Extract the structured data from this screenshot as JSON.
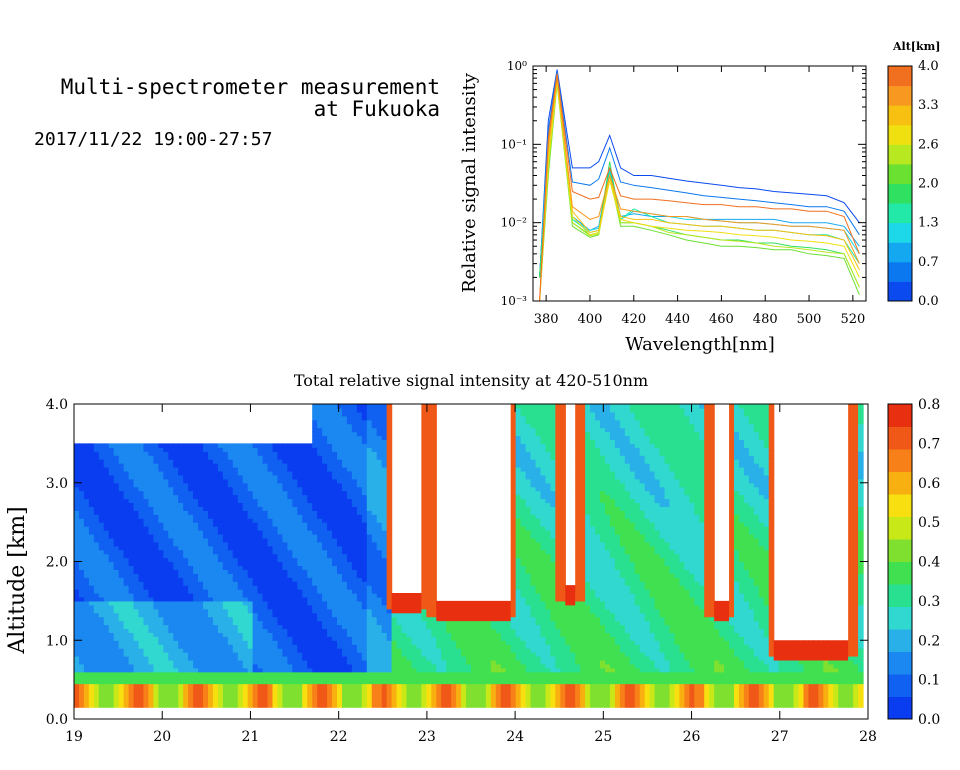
{
  "header": {
    "title_line1": "Multi-spectrometer measurement",
    "title_line2": "at Fukuoka",
    "datetime": "2017/11/22 19:00-27:57"
  },
  "chart_data": [
    {
      "type": "line",
      "xlabel": "Wavelength[nm]",
      "ylabel": "Relative signal intensity",
      "x_ticks": [
        "380",
        "400",
        "420",
        "440",
        "460",
        "480",
        "500",
        "520"
      ],
      "y_ticks": [
        "10⁻³",
        "10⁻²",
        "10⁻¹",
        "10⁰"
      ],
      "xlim": [
        374,
        526
      ],
      "ylim": [
        0.001,
        1
      ],
      "yscale": "log",
      "x": [
        377,
        381,
        385,
        392,
        400,
        404,
        409,
        414,
        420,
        428,
        436,
        444,
        452,
        460,
        468,
        476,
        484,
        492,
        500,
        508,
        516,
        523
      ],
      "colorbar": {
        "title": "Alt[km]",
        "ticks": [
          "0.0",
          "0.7",
          "1.3",
          "2.0",
          "2.6",
          "3.3",
          "4.0"
        ],
        "colors": [
          "#0a4aef",
          "#0c78f0",
          "#14a8f0",
          "#1cd8e8",
          "#22e8a8",
          "#30e060",
          "#6ae030",
          "#b8e820",
          "#f0e010",
          "#f8c010",
          "#f89820",
          "#f07020"
        ]
      },
      "series": [
        {
          "color": "#0a4aef",
          "values": [
            0.002,
            0.2,
            0.9,
            0.05,
            0.05,
            0.06,
            0.13,
            0.05,
            0.04,
            0.04,
            0.037,
            0.034,
            0.032,
            0.03,
            0.028,
            0.027,
            0.025,
            0.024,
            0.023,
            0.022,
            0.018,
            0.01
          ]
        },
        {
          "color": "#0c78f0",
          "values": [
            0.002,
            0.15,
            0.85,
            0.033,
            0.03,
            0.036,
            0.09,
            0.033,
            0.03,
            0.028,
            0.026,
            0.024,
            0.022,
            0.021,
            0.02,
            0.019,
            0.018,
            0.017,
            0.016,
            0.016,
            0.014,
            0.007
          ]
        },
        {
          "color": "#14a8f0",
          "values": [
            0.002,
            0.12,
            0.8,
            0.012,
            0.008,
            0.009,
            0.05,
            0.012,
            0.013,
            0.012,
            0.012,
            0.012,
            0.011,
            0.011,
            0.011,
            0.011,
            0.011,
            0.01,
            0.01,
            0.01,
            0.009,
            0.005
          ]
        },
        {
          "color": "#1cd8e8",
          "values": [
            0.002,
            0.1,
            0.75,
            0.011,
            0.008,
            0.0085,
            0.045,
            0.011,
            0.014,
            0.013,
            0.012,
            0.011,
            0.011,
            0.0105,
            0.01,
            0.01,
            0.0095,
            0.009,
            0.009,
            0.0085,
            0.008,
            0.004
          ]
        },
        {
          "color": "#22e8a8",
          "values": [
            0.002,
            0.08,
            0.7,
            0.011,
            0.0075,
            0.008,
            0.045,
            0.011,
            0.015,
            0.012,
            0.01,
            0.0095,
            0.009,
            0.009,
            0.0085,
            0.008,
            0.008,
            0.0075,
            0.007,
            0.007,
            0.006,
            0.003
          ]
        },
        {
          "color": "#30e060",
          "values": [
            0.002,
            0.06,
            0.65,
            0.01,
            0.007,
            0.0075,
            0.06,
            0.01,
            0.01,
            0.009,
            0.008,
            0.007,
            0.0065,
            0.006,
            0.006,
            0.0055,
            0.0055,
            0.005,
            0.0048,
            0.0045,
            0.004,
            0.0015
          ]
        },
        {
          "color": "#6ae030",
          "values": [
            0.001,
            0.04,
            0.6,
            0.009,
            0.0065,
            0.007,
            0.04,
            0.009,
            0.009,
            0.008,
            0.007,
            0.006,
            0.0055,
            0.005,
            0.005,
            0.0048,
            0.0045,
            0.0045,
            0.004,
            0.0038,
            0.0035,
            0.0012
          ]
        },
        {
          "color": "#b8e820",
          "values": [
            0.001,
            0.05,
            0.6,
            0.01,
            0.0068,
            0.0072,
            0.035,
            0.01,
            0.01,
            0.009,
            0.0075,
            0.007,
            0.0065,
            0.006,
            0.0058,
            0.0055,
            0.005,
            0.0048,
            0.0045,
            0.0042,
            0.004,
            0.0015
          ]
        },
        {
          "color": "#f0e010",
          "values": [
            0.001,
            0.06,
            0.65,
            0.012,
            0.007,
            0.0075,
            0.035,
            0.011,
            0.01,
            0.009,
            0.0085,
            0.008,
            0.0078,
            0.0075,
            0.007,
            0.0068,
            0.0065,
            0.006,
            0.0058,
            0.0055,
            0.005,
            0.002
          ]
        },
        {
          "color": "#f8c010",
          "values": [
            0.001,
            0.08,
            0.7,
            0.014,
            0.0075,
            0.008,
            0.04,
            0.012,
            0.011,
            0.011,
            0.01,
            0.0095,
            0.009,
            0.009,
            0.0085,
            0.008,
            0.008,
            0.0075,
            0.007,
            0.0068,
            0.006,
            0.0025
          ]
        },
        {
          "color": "#f89820",
          "values": [
            0.001,
            0.1,
            0.75,
            0.016,
            0.011,
            0.012,
            0.04,
            0.015,
            0.014,
            0.013,
            0.012,
            0.012,
            0.011,
            0.0105,
            0.01,
            0.01,
            0.0095,
            0.009,
            0.009,
            0.0085,
            0.008,
            0.003
          ]
        },
        {
          "color": "#f07020",
          "values": [
            0.001,
            0.12,
            0.8,
            0.025,
            0.02,
            0.021,
            0.05,
            0.022,
            0.02,
            0.02,
            0.019,
            0.018,
            0.017,
            0.017,
            0.016,
            0.016,
            0.015,
            0.015,
            0.014,
            0.014,
            0.012,
            0.004
          ]
        }
      ]
    },
    {
      "type": "heatmap",
      "title": "Total relative signal intensity at 420-510nm",
      "ylabel": "Altitude [km]",
      "x_ticks": [
        "19",
        "20",
        "21",
        "22",
        "23",
        "24",
        "25",
        "26",
        "27",
        "28"
      ],
      "y_ticks": [
        "0.0",
        "1.0",
        "2.0",
        "3.0",
        "4.0"
      ],
      "xlim": [
        19,
        28
      ],
      "ylim": [
        0,
        4
      ],
      "colorbar": {
        "ticks": [
          "0.0",
          "0.1",
          "0.2",
          "0.3",
          "0.4",
          "0.5",
          "0.6",
          "0.7",
          "0.8"
        ],
        "colors": [
          "#0a3df0",
          "#1060f2",
          "#1a88f0",
          "#2ab0e8",
          "#30d8d0",
          "#28e090",
          "#40e050",
          "#80e030",
          "#c8e818",
          "#f8e010",
          "#f8b010",
          "#f88018",
          "#f05818",
          "#e83010"
        ]
      },
      "cloud_columns": [
        {
          "t_start": 22.6,
          "t_end": 22.95,
          "base": 1.6
        },
        {
          "t_start": 23.1,
          "t_end": 23.95,
          "base": 1.5
        },
        {
          "t_start": 24.55,
          "t_end": 24.7,
          "base": 1.7
        },
        {
          "t_start": 26.25,
          "t_end": 26.4,
          "base": 1.5
        },
        {
          "t_start": 26.95,
          "t_end": 27.8,
          "base": 1.0
        }
      ],
      "clear_regions": [
        {
          "t_start": 19.0,
          "t_end": 21.7,
          "top": 3.5
        }
      ],
      "data_end": 27.95
    }
  ]
}
